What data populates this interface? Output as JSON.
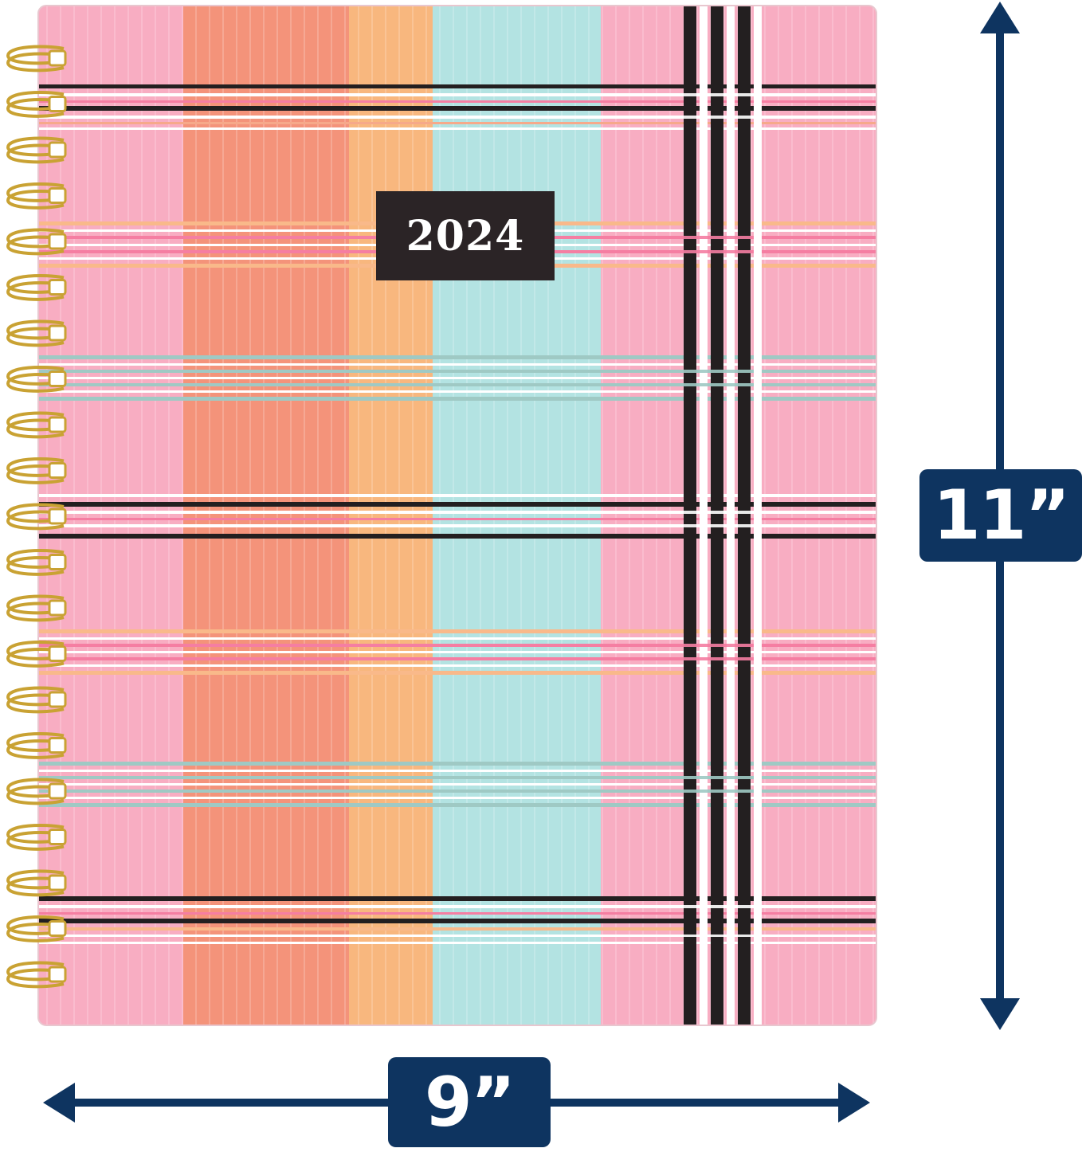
{
  "planner": {
    "cover_year": "2024",
    "pattern": "plaid",
    "colors": {
      "pink": "#f8adc2",
      "coral": "#f4937a",
      "peach": "#f8b77e",
      "aqua": "#b3e3e2",
      "black": "#231f20",
      "white": "#ffffff",
      "gold_wire": "#c9a233",
      "year_box": "#2b2426"
    }
  },
  "dimensions": {
    "height_label": "11”",
    "width_label": "9”",
    "arrow_color": "#0e3460"
  }
}
